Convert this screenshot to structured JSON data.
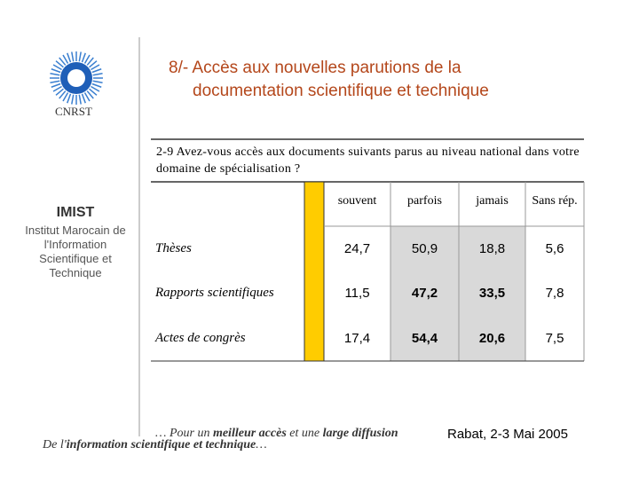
{
  "logo": {
    "label": "CNRST"
  },
  "header": {
    "title": [
      "8/- Accès aux nouvelles parutions de la",
      "documentation scientifique et technique"
    ]
  },
  "sidebar": {
    "name": "IMIST",
    "description": "Institut Marocain de l'Information Scientifique et Technique"
  },
  "question": "2-9   Avez-vous accès aux documents suivants parus au niveau national dans votre domaine de spécialisation  ?",
  "table": {
    "columns": [
      "souvent",
      "parfois",
      "jamais",
      "Sans rép."
    ],
    "rows": [
      [
        "Thèses",
        "24,7",
        "50,9",
        "18,8",
        "5,6"
      ],
      [
        "Rapports scientifiques",
        "11,5",
        "47,2",
        "33,5",
        "7,8"
      ],
      [
        "Actes de congrès",
        "17,4",
        "54,4",
        "20,6",
        "7,5"
      ]
    ]
  },
  "footer": {
    "line1": [
      "… Pour un ",
      "meilleur accès",
      " et une ",
      "large diffusion"
    ],
    "line2": [
      "De l'",
      "information",
      " ",
      "scientifique et technique",
      "…"
    ],
    "place_date": "Rabat, 2-3 Mai 2005"
  }
}
